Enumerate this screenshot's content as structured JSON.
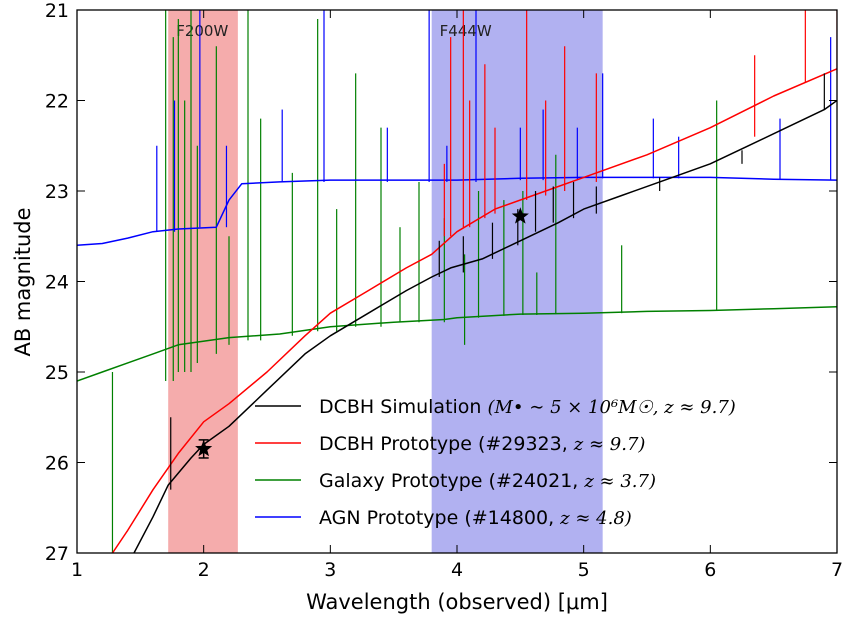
{
  "chart_data": {
    "type": "line",
    "xlabel": "Wavelength (observed) [μm]",
    "ylabel": "AB magnitude",
    "xlim": [
      1,
      7
    ],
    "ylim": [
      27,
      21
    ],
    "y_inverted": true,
    "x_ticks": [
      "1",
      "2",
      "3",
      "4",
      "5",
      "6",
      "7"
    ],
    "y_ticks": [
      "21",
      "22",
      "23",
      "24",
      "25",
      "26",
      "27"
    ],
    "grid": false,
    "legend_position": "lower-right",
    "bands": [
      {
        "label": "F200W",
        "range": [
          1.72,
          2.27
        ],
        "color": "#f4a3a3"
      },
      {
        "label": "F444W",
        "range": [
          3.8,
          5.15
        ],
        "color": "#a9a9f0"
      }
    ],
    "series": [
      {
        "name": "DCBH Simulation",
        "legend_text": "DCBH Simulation",
        "legend_math": "(M• ∼ 5 × 10⁶M☉, z ≈ 9.7)",
        "color": "#000000",
        "points": [
          [
            1.45,
            27.0
          ],
          [
            1.6,
            26.6
          ],
          [
            1.72,
            26.25
          ],
          [
            1.9,
            25.95
          ],
          [
            2.0,
            25.8
          ],
          [
            2.2,
            25.6
          ],
          [
            2.5,
            25.2
          ],
          [
            2.8,
            24.8
          ],
          [
            3.0,
            24.6
          ],
          [
            3.3,
            24.35
          ],
          [
            3.6,
            24.1
          ],
          [
            3.8,
            23.95
          ],
          [
            3.95,
            23.85
          ],
          [
            4.2,
            23.75
          ],
          [
            4.5,
            23.55
          ],
          [
            4.8,
            23.35
          ],
          [
            5.0,
            23.2
          ],
          [
            5.3,
            23.05
          ],
          [
            5.6,
            22.9
          ],
          [
            6.0,
            22.7
          ],
          [
            6.3,
            22.5
          ],
          [
            6.6,
            22.3
          ],
          [
            6.9,
            22.1
          ],
          [
            7.0,
            22.0
          ]
        ],
        "lines": [
          [
            1.74,
            25.5,
            26.3
          ],
          [
            3.86,
            23.55,
            23.95
          ],
          [
            4.05,
            23.5,
            23.9
          ],
          [
            4.28,
            23.35,
            23.75
          ],
          [
            4.48,
            23.2,
            23.6
          ],
          [
            4.62,
            23.0,
            23.45
          ],
          [
            4.76,
            22.95,
            23.35
          ],
          [
            4.92,
            22.9,
            23.3
          ],
          [
            5.1,
            22.95,
            23.25
          ],
          [
            5.6,
            22.85,
            23.0
          ],
          [
            6.25,
            22.55,
            22.7
          ],
          [
            6.9,
            21.7,
            22.1
          ]
        ],
        "markers": [
          {
            "x": 2.0,
            "y": 25.85,
            "yerr": 0.1
          },
          {
            "x": 4.5,
            "y": 23.28
          }
        ]
      },
      {
        "name": "DCBH Prototype",
        "legend_text": "DCBH Prototype (#29323,",
        "legend_math": "z ≈ 9.7)",
        "color": "#ff0000",
        "points": [
          [
            1.28,
            27.0
          ],
          [
            1.4,
            26.75
          ],
          [
            1.6,
            26.3
          ],
          [
            1.8,
            25.9
          ],
          [
            2.0,
            25.55
          ],
          [
            2.2,
            25.35
          ],
          [
            2.5,
            25.0
          ],
          [
            2.8,
            24.6
          ],
          [
            3.0,
            24.35
          ],
          [
            3.3,
            24.1
          ],
          [
            3.6,
            23.85
          ],
          [
            3.8,
            23.7
          ],
          [
            4.0,
            23.45
          ],
          [
            4.3,
            23.2
          ],
          [
            4.6,
            23.05
          ],
          [
            5.0,
            22.85
          ],
          [
            5.5,
            22.6
          ],
          [
            6.0,
            22.3
          ],
          [
            6.5,
            21.95
          ],
          [
            7.0,
            21.65
          ]
        ],
        "lines": [
          [
            3.9,
            22.7,
            23.5
          ],
          [
            3.95,
            21.3,
            23.5
          ],
          [
            4.05,
            21.0,
            23.4
          ],
          [
            4.1,
            22.0,
            23.4
          ],
          [
            4.22,
            21.6,
            23.3
          ],
          [
            4.3,
            22.3,
            23.25
          ],
          [
            4.55,
            21.0,
            23.1
          ],
          [
            4.7,
            22.0,
            23.05
          ],
          [
            4.85,
            21.4,
            23.0
          ],
          [
            5.1,
            21.7,
            22.9
          ],
          [
            6.35,
            21.5,
            22.4
          ],
          [
            6.75,
            21.0,
            21.8
          ],
          [
            7.0,
            21.0,
            21.7
          ]
        ],
        "markers": []
      },
      {
        "name": "Galaxy Prototype",
        "legend_text": "Galaxy Prototype (#24021,",
        "legend_math": "z ≈ 3.7)",
        "color": "#008000",
        "points": [
          [
            1.0,
            25.1
          ],
          [
            1.2,
            25.0
          ],
          [
            1.4,
            24.9
          ],
          [
            1.6,
            24.8
          ],
          [
            1.8,
            24.7
          ],
          [
            2.2,
            24.62
          ],
          [
            2.6,
            24.58
          ],
          [
            3.0,
            24.5
          ],
          [
            3.5,
            24.45
          ],
          [
            3.9,
            24.42
          ],
          [
            4.0,
            24.4
          ],
          [
            4.5,
            24.36
          ],
          [
            5.0,
            24.35
          ],
          [
            5.5,
            24.33
          ],
          [
            6.0,
            24.32
          ],
          [
            6.5,
            24.3
          ],
          [
            7.0,
            24.28
          ]
        ],
        "lines": [
          [
            1.28,
            25.0,
            27.0
          ],
          [
            1.7,
            21.0,
            25.1
          ],
          [
            1.76,
            21.3,
            25.1
          ],
          [
            1.8,
            21.1,
            25.0
          ],
          [
            1.85,
            22.0,
            25.0
          ],
          [
            1.9,
            21.0,
            25.0
          ],
          [
            1.95,
            22.5,
            24.9
          ],
          [
            2.1,
            21.4,
            24.8
          ],
          [
            2.2,
            23.5,
            24.7
          ],
          [
            2.35,
            21.0,
            24.65
          ],
          [
            2.45,
            22.2,
            24.65
          ],
          [
            2.7,
            22.8,
            24.6
          ],
          [
            2.9,
            21.1,
            24.55
          ],
          [
            3.05,
            23.2,
            24.55
          ],
          [
            3.2,
            21.7,
            24.5
          ],
          [
            3.4,
            22.3,
            24.5
          ],
          [
            3.55,
            23.4,
            24.45
          ],
          [
            3.7,
            22.9,
            24.45
          ],
          [
            3.9,
            23.3,
            24.45
          ],
          [
            4.06,
            23.7,
            24.7
          ],
          [
            4.17,
            23.0,
            24.4
          ],
          [
            4.37,
            23.1,
            24.38
          ],
          [
            4.52,
            23.0,
            24.37
          ],
          [
            4.63,
            23.9,
            24.37
          ],
          [
            4.78,
            22.6,
            24.36
          ],
          [
            5.3,
            23.6,
            24.35
          ],
          [
            6.05,
            22.0,
            24.32
          ],
          [
            7.0,
            24.1,
            24.3
          ]
        ],
        "markers": []
      },
      {
        "name": "AGN Prototype",
        "legend_text": "AGN Prototype (#14800,",
        "legend_math": "z ≈ 4.8)",
        "color": "#0000ff",
        "points": [
          [
            1.0,
            23.6
          ],
          [
            1.2,
            23.58
          ],
          [
            1.4,
            23.52
          ],
          [
            1.6,
            23.45
          ],
          [
            1.8,
            23.42
          ],
          [
            2.1,
            23.4
          ],
          [
            2.2,
            23.1
          ],
          [
            2.3,
            22.92
          ],
          [
            2.6,
            22.9
          ],
          [
            3.0,
            22.88
          ],
          [
            3.5,
            22.88
          ],
          [
            4.0,
            22.88
          ],
          [
            4.5,
            22.86
          ],
          [
            5.0,
            22.85
          ],
          [
            5.5,
            22.85
          ],
          [
            6.0,
            22.85
          ],
          [
            6.5,
            22.87
          ],
          [
            7.0,
            22.88
          ]
        ],
        "lines": [
          [
            1.63,
            22.5,
            23.45
          ],
          [
            1.77,
            22.0,
            23.45
          ],
          [
            1.97,
            21.0,
            23.4
          ],
          [
            2.18,
            22.5,
            23.4
          ],
          [
            2.62,
            22.1,
            22.9
          ],
          [
            2.95,
            21.0,
            22.9
          ],
          [
            3.45,
            22.3,
            22.9
          ],
          [
            3.78,
            21.0,
            22.9
          ],
          [
            3.92,
            22.5,
            22.9
          ],
          [
            4.15,
            21.0,
            22.9
          ],
          [
            4.5,
            22.3,
            22.88
          ],
          [
            4.68,
            22.1,
            22.88
          ],
          [
            4.95,
            22.3,
            22.87
          ],
          [
            5.15,
            21.7,
            22.86
          ],
          [
            5.55,
            22.2,
            22.86
          ],
          [
            5.75,
            22.4,
            22.86
          ],
          [
            6.55,
            22.2,
            22.87
          ],
          [
            6.95,
            21.3,
            22.88
          ]
        ],
        "markers": []
      }
    ]
  }
}
